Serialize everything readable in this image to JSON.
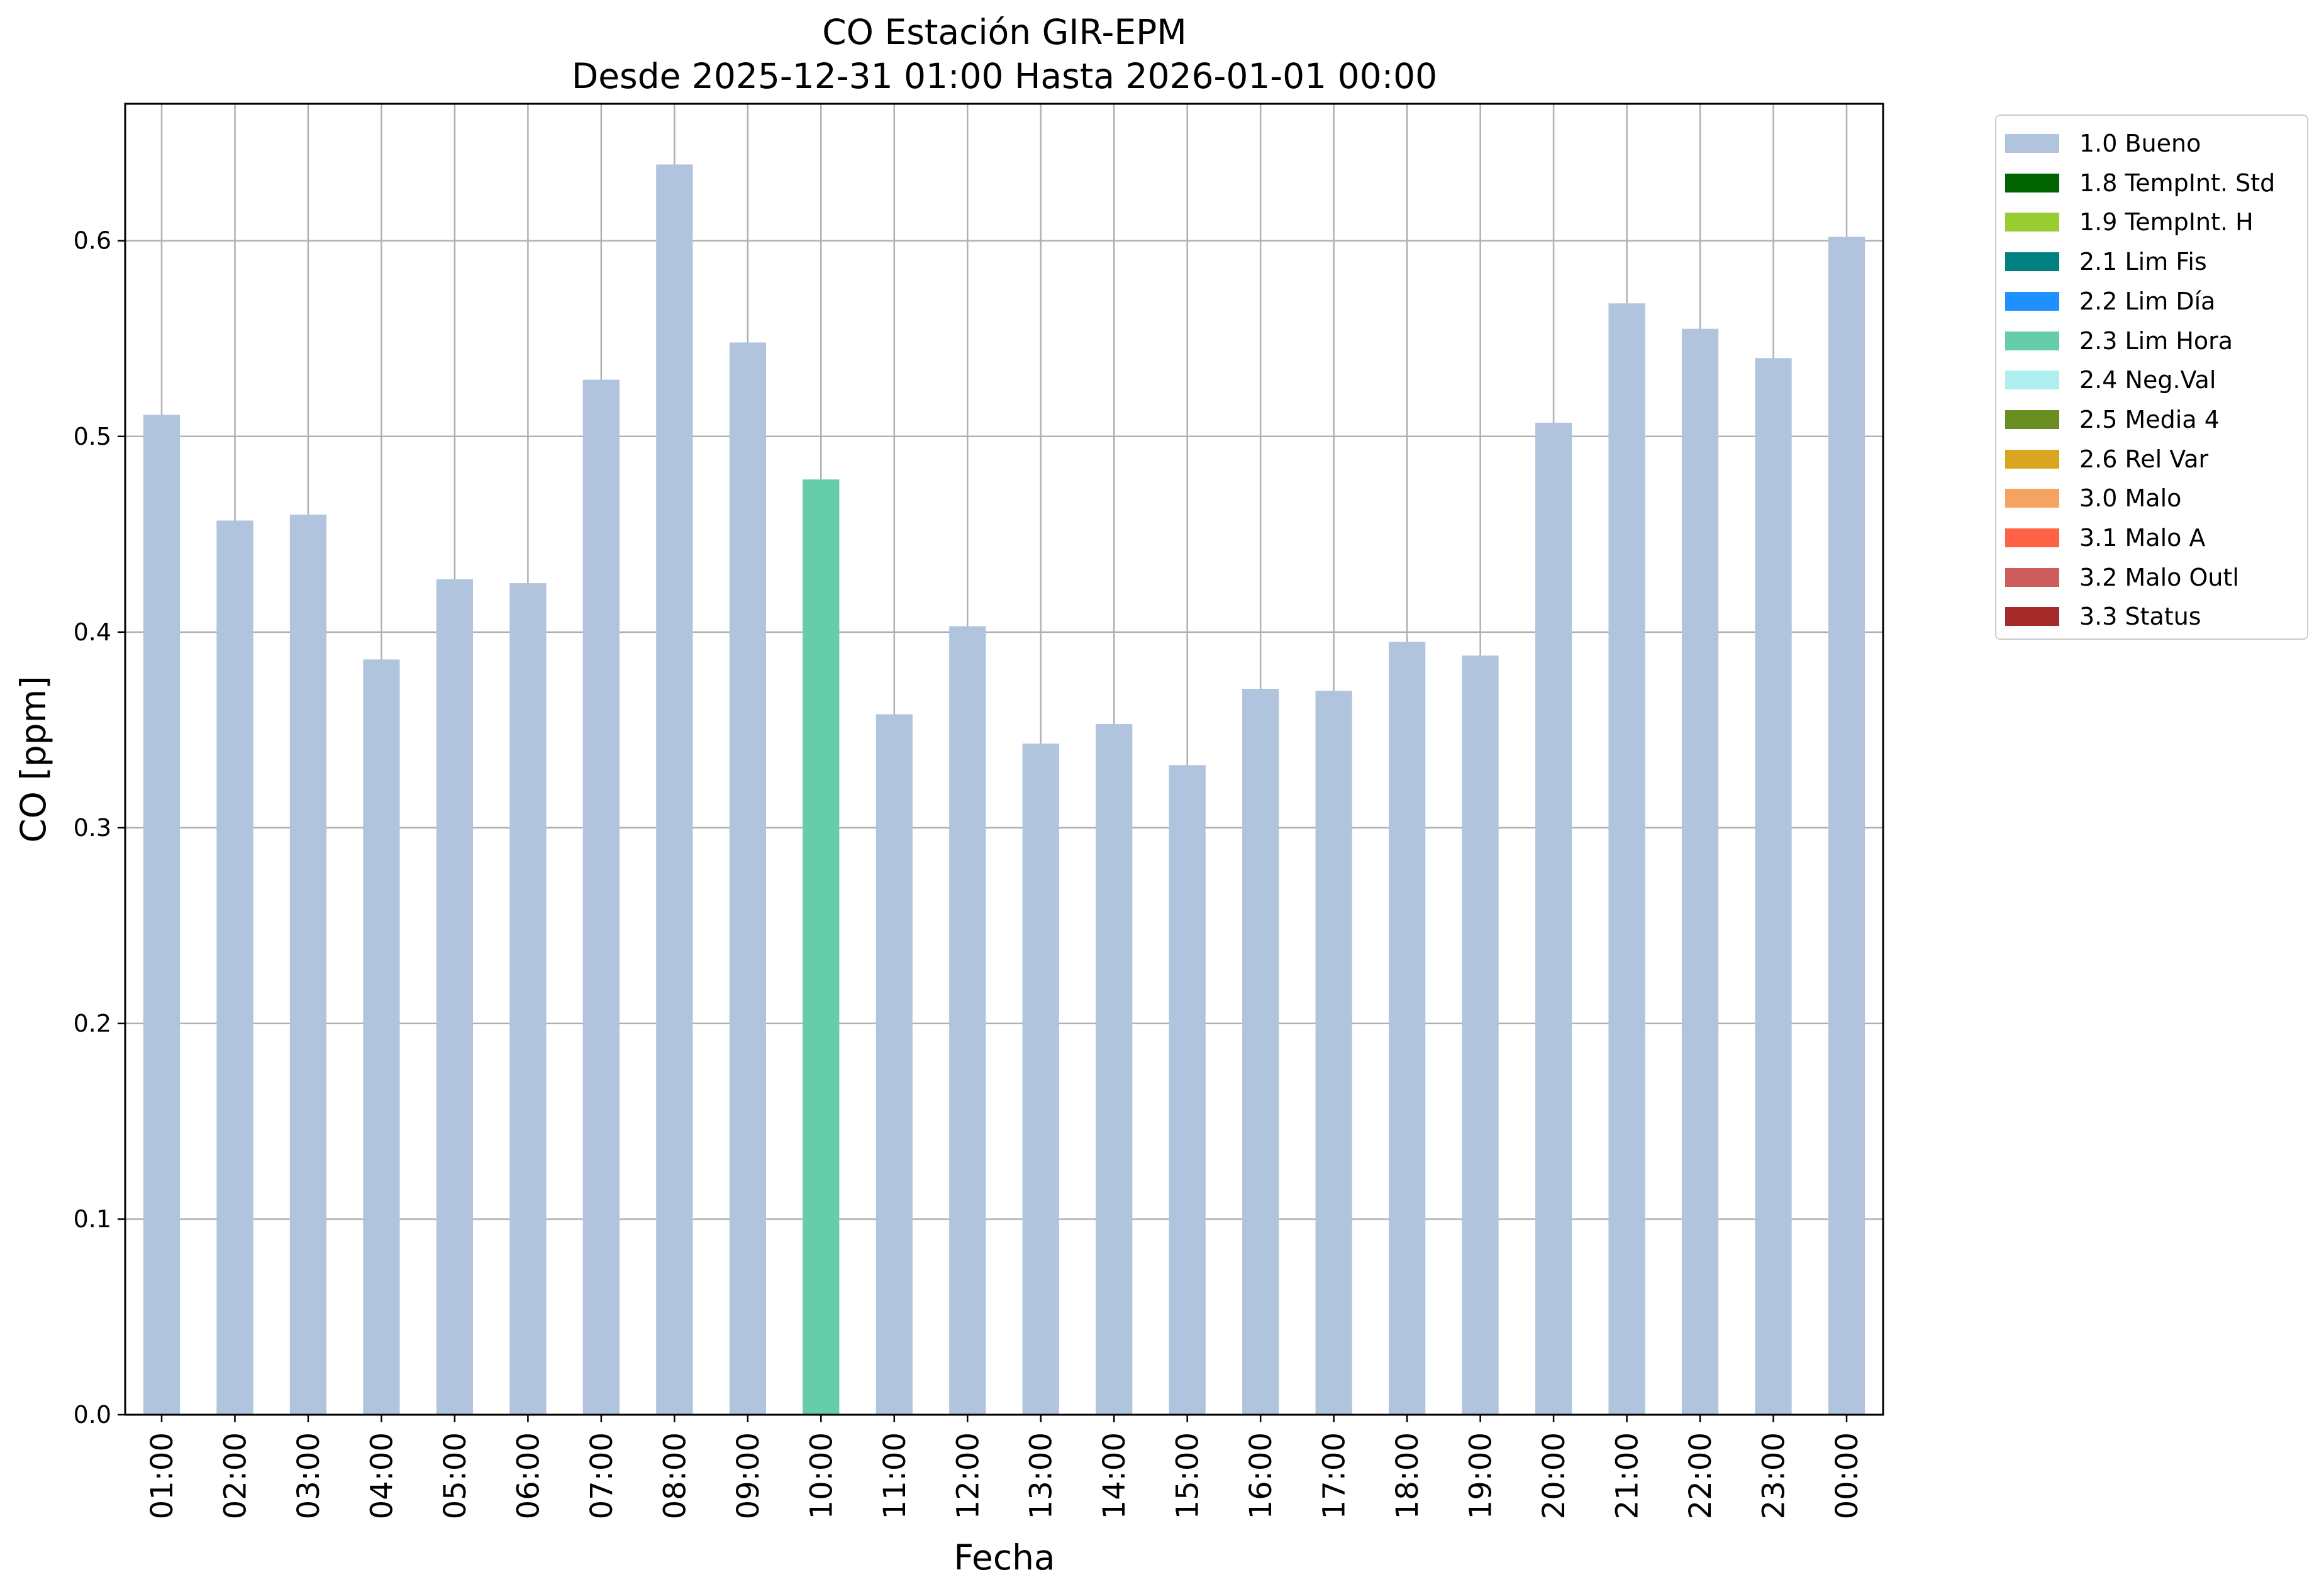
{
  "chart_data": {
    "type": "bar",
    "title": "CO Estación GIR-EPM",
    "subtitle": "Desde 2025-12-31 01:00 Hasta 2026-01-01 00:00",
    "xlabel": "Fecha",
    "ylabel": "CO [ppm]",
    "ylim": [
      0,
      0.67
    ],
    "yticks": [
      "0.0",
      "0.1",
      "0.2",
      "0.3",
      "0.4",
      "0.5",
      "0.6"
    ],
    "grid": true,
    "legend_position": "outside-top-right",
    "categories": [
      "01:00",
      "02:00",
      "03:00",
      "04:00",
      "05:00",
      "06:00",
      "07:00",
      "08:00",
      "09:00",
      "10:00",
      "11:00",
      "12:00",
      "13:00",
      "14:00",
      "15:00",
      "16:00",
      "17:00",
      "18:00",
      "19:00",
      "20:00",
      "21:00",
      "22:00",
      "23:00",
      "00:00"
    ],
    "values": [
      0.511,
      0.457,
      0.46,
      0.386,
      0.427,
      0.425,
      0.529,
      0.639,
      0.548,
      0.478,
      0.358,
      0.403,
      0.343,
      0.353,
      0.332,
      0.371,
      0.37,
      0.395,
      0.388,
      0.507,
      0.568,
      0.555,
      0.54,
      0.602
    ],
    "flags": [
      "1.0 Bueno",
      "1.0 Bueno",
      "1.0 Bueno",
      "1.0 Bueno",
      "1.0 Bueno",
      "1.0 Bueno",
      "1.0 Bueno",
      "1.0 Bueno",
      "1.0 Bueno",
      "2.3 Lim Hora",
      "1.0 Bueno",
      "1.0 Bueno",
      "1.0 Bueno",
      "1.0 Bueno",
      "1.0 Bueno",
      "1.0 Bueno",
      "1.0 Bueno",
      "1.0 Bueno",
      "1.0 Bueno",
      "1.0 Bueno",
      "1.0 Bueno",
      "1.0 Bueno",
      "1.0 Bueno",
      "1.0 Bueno"
    ],
    "legend": [
      {
        "label": "1.0 Bueno",
        "color": "#b0c4de"
      },
      {
        "label": "1.8 TempInt. Std",
        "color": "#006400"
      },
      {
        "label": "1.9 TempInt. H",
        "color": "#9acd32"
      },
      {
        "label": "2.1 Lim Fis",
        "color": "#008080"
      },
      {
        "label": "2.2 Lim Día",
        "color": "#1e90ff"
      },
      {
        "label": "2.3 Lim Hora",
        "color": "#66cdaa"
      },
      {
        "label": "2.4 Neg.Val",
        "color": "#afeeee"
      },
      {
        "label": "2.5 Media 4",
        "color": "#6b8e23"
      },
      {
        "label": "2.6 Rel Var",
        "color": "#daa520"
      },
      {
        "label": "3.0 Malo",
        "color": "#f4a460"
      },
      {
        "label": "3.1 Malo A",
        "color": "#ff6347"
      },
      {
        "label": "3.2 Malo Outl",
        "color": "#cd5c5c"
      },
      {
        "label": "3.3 Status",
        "color": "#a52a2a"
      }
    ]
  }
}
